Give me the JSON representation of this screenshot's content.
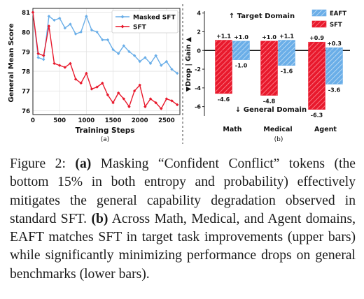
{
  "chart_data": [
    {
      "type": "line",
      "panel_label": "(a)",
      "xlabel": "Training Steps",
      "ylabel": "General Mean Score",
      "xlim": [
        0,
        2750
      ],
      "ylim": [
        75.8,
        81.2
      ],
      "xticks": [
        0,
        500,
        1000,
        1500,
        2000,
        2500
      ],
      "yticks": [
        76,
        77,
        78,
        79,
        80,
        81
      ],
      "grid": true,
      "legend_position": "top-right",
      "series": [
        {
          "name": "Masked SFT",
          "color": "#6aaee8",
          "marker": "diamond",
          "x": [
            0,
            100,
            200,
            300,
            400,
            500,
            600,
            700,
            800,
            900,
            1000,
            1100,
            1200,
            1300,
            1400,
            1500,
            1600,
            1700,
            1800,
            1900,
            2000,
            2100,
            2200,
            2300,
            2400,
            2500,
            2600,
            2700
          ],
          "y": [
            81.0,
            78.7,
            78.6,
            80.8,
            80.6,
            80.7,
            80.2,
            80.4,
            79.9,
            80.0,
            80.8,
            80.1,
            80.0,
            79.6,
            79.6,
            79.1,
            78.9,
            79.3,
            79.0,
            78.8,
            78.5,
            78.7,
            78.4,
            78.8,
            78.3,
            78.5,
            78.1,
            77.9
          ]
        },
        {
          "name": "SFT",
          "color": "#e8192c",
          "marker": "diamond",
          "x": [
            0,
            100,
            200,
            300,
            400,
            500,
            600,
            700,
            800,
            900,
            1000,
            1100,
            1200,
            1300,
            1400,
            1500,
            1600,
            1700,
            1800,
            1900,
            2000,
            2100,
            2200,
            2300,
            2400,
            2500,
            2600,
            2700
          ],
          "y": [
            81.0,
            78.9,
            78.8,
            80.3,
            78.4,
            78.3,
            78.2,
            78.4,
            77.6,
            77.4,
            77.9,
            77.1,
            77.2,
            77.4,
            76.8,
            76.4,
            76.9,
            76.6,
            76.2,
            77.0,
            77.3,
            76.2,
            76.6,
            76.4,
            76.1,
            76.6,
            76.5,
            76.3
          ]
        }
      ]
    },
    {
      "type": "bar",
      "panel_label": "(b)",
      "ylabel_up": "Gain ▲",
      "ylabel_sep": " | ",
      "ylabel_down": "▼Drop",
      "categories": [
        "Math",
        "Medical",
        "Agent"
      ],
      "ylim": [
        -7,
        4.2
      ],
      "yticks": [
        4,
        2,
        0,
        -2,
        -4,
        -6
      ],
      "annotation_top": "↑ Target Domain",
      "annotation_bottom": "↓ General Domain",
      "legend_position": "top-right",
      "series": [
        {
          "name": "SFT",
          "color": "#e8192c",
          "hatch": "diagonal",
          "gain": [
            1.1,
            1.0,
            0.9
          ],
          "drop": [
            -4.6,
            -4.8,
            -6.3
          ],
          "gain_labels": [
            "+1.1",
            "+1.0",
            "+0.9"
          ],
          "drop_labels": [
            "-4.6",
            "-4.8",
            "-6.3"
          ]
        },
        {
          "name": "EAFT",
          "color": "#6aaee8",
          "hatch": "diagonal",
          "gain": [
            1.0,
            1.1,
            0.3
          ],
          "drop": [
            -1.0,
            -1.6,
            -3.6
          ],
          "gain_labels": [
            "+1.0",
            "+1.1",
            "+0.3"
          ],
          "drop_labels": [
            "-1.0",
            "-1.6",
            "-3.6"
          ]
        }
      ]
    }
  ],
  "caption": {
    "fig_label": "Figure 2: ",
    "a_label": "(a)",
    "a_text": " Masking “Confident Conflict” tokens (the bottom 15% in both entropy and probability) effectively mitigates the general capability degradation observed in standard SFT. ",
    "b_label": "(b)",
    "b_text": " Across Math, Medical, and Agent domains, EAFT matches SFT in target task improvements (upper bars) while significantly minimizing performance drops on general benchmarks (lower bars)."
  }
}
